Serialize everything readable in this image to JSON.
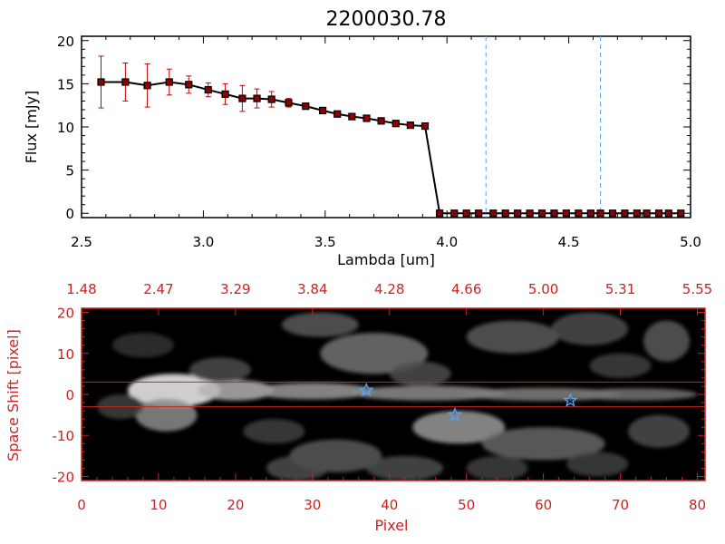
{
  "chart_data": [
    {
      "type": "line",
      "title": "2200030.78",
      "xlabel": "Lambda [um]",
      "ylabel": "Flux [mJy]",
      "xlim": [
        2.5,
        5.0
      ],
      "ylim": [
        -0.5,
        20.5
      ],
      "xticks": [
        "2.5",
        "3.0",
        "3.5",
        "4.0",
        "4.5",
        "5.0"
      ],
      "yticks": [
        "0",
        "5",
        "10",
        "15",
        "20"
      ],
      "grid": false,
      "line_color": "#000000",
      "marker_color": "#8b0000",
      "errorbar_color": "#cc0000",
      "vline_color": "#4da6ff",
      "vlines": [
        4.16,
        4.63
      ],
      "series": [
        {
          "x": [
            2.58,
            2.68,
            2.77,
            2.86,
            2.94,
            3.02,
            3.09,
            3.16,
            3.22,
            3.28,
            3.35,
            3.42,
            3.49,
            3.55,
            3.61,
            3.67,
            3.73,
            3.79,
            3.85,
            3.91,
            3.97,
            4.03,
            4.08,
            4.13,
            4.19,
            4.24,
            4.29,
            4.34,
            4.39,
            4.44,
            4.49,
            4.54,
            4.59,
            4.63,
            4.68,
            4.73,
            4.78,
            4.82,
            4.87,
            4.91,
            4.96
          ],
          "y": [
            15.2,
            15.2,
            14.8,
            15.2,
            14.9,
            14.3,
            13.8,
            13.3,
            13.3,
            13.2,
            12.8,
            12.4,
            11.9,
            11.5,
            11.2,
            11.0,
            10.7,
            10.4,
            10.2,
            10.1,
            0,
            0,
            0,
            0,
            0,
            0,
            0,
            0,
            0,
            0,
            0,
            0,
            0,
            0,
            0,
            0,
            0,
            0,
            0,
            0,
            0
          ],
          "err": [
            3.0,
            2.2,
            2.5,
            1.5,
            1.0,
            0.8,
            1.2,
            1.5,
            1.1,
            0.9,
            0.5,
            0.3,
            0.3,
            0.2,
            0.2,
            0.2,
            0.2,
            0.2,
            0.2,
            0.2,
            0,
            0,
            0,
            0,
            0,
            0,
            0,
            0,
            0,
            0,
            0,
            0,
            0,
            0,
            0,
            0,
            0,
            0,
            0,
            0,
            0
          ]
        }
      ]
    },
    {
      "type": "heatmap",
      "xlabel": "Pixel",
      "ylabel": "Space Shift [pixel]",
      "xlim": [
        0,
        81
      ],
      "ylim": [
        -21,
        21
      ],
      "xticks": [
        "0",
        "10",
        "20",
        "30",
        "40",
        "50",
        "60",
        "70",
        "80"
      ],
      "yticks": [
        "-20",
        "-10",
        "0",
        "10",
        "20"
      ],
      "top_ticks": [
        "1.48",
        "2.47",
        "3.29",
        "3.84",
        "4.28",
        "4.66",
        "5.00",
        "5.31",
        "5.55"
      ],
      "axis_color": "#cc2222",
      "extraction_lines": [
        3,
        -3
      ],
      "star_color": "#4da6ff",
      "stars": [
        {
          "x": 37,
          "y": 1
        },
        {
          "x": 48.5,
          "y": -5
        },
        {
          "x": 63.5,
          "y": -1.5
        }
      ]
    }
  ]
}
